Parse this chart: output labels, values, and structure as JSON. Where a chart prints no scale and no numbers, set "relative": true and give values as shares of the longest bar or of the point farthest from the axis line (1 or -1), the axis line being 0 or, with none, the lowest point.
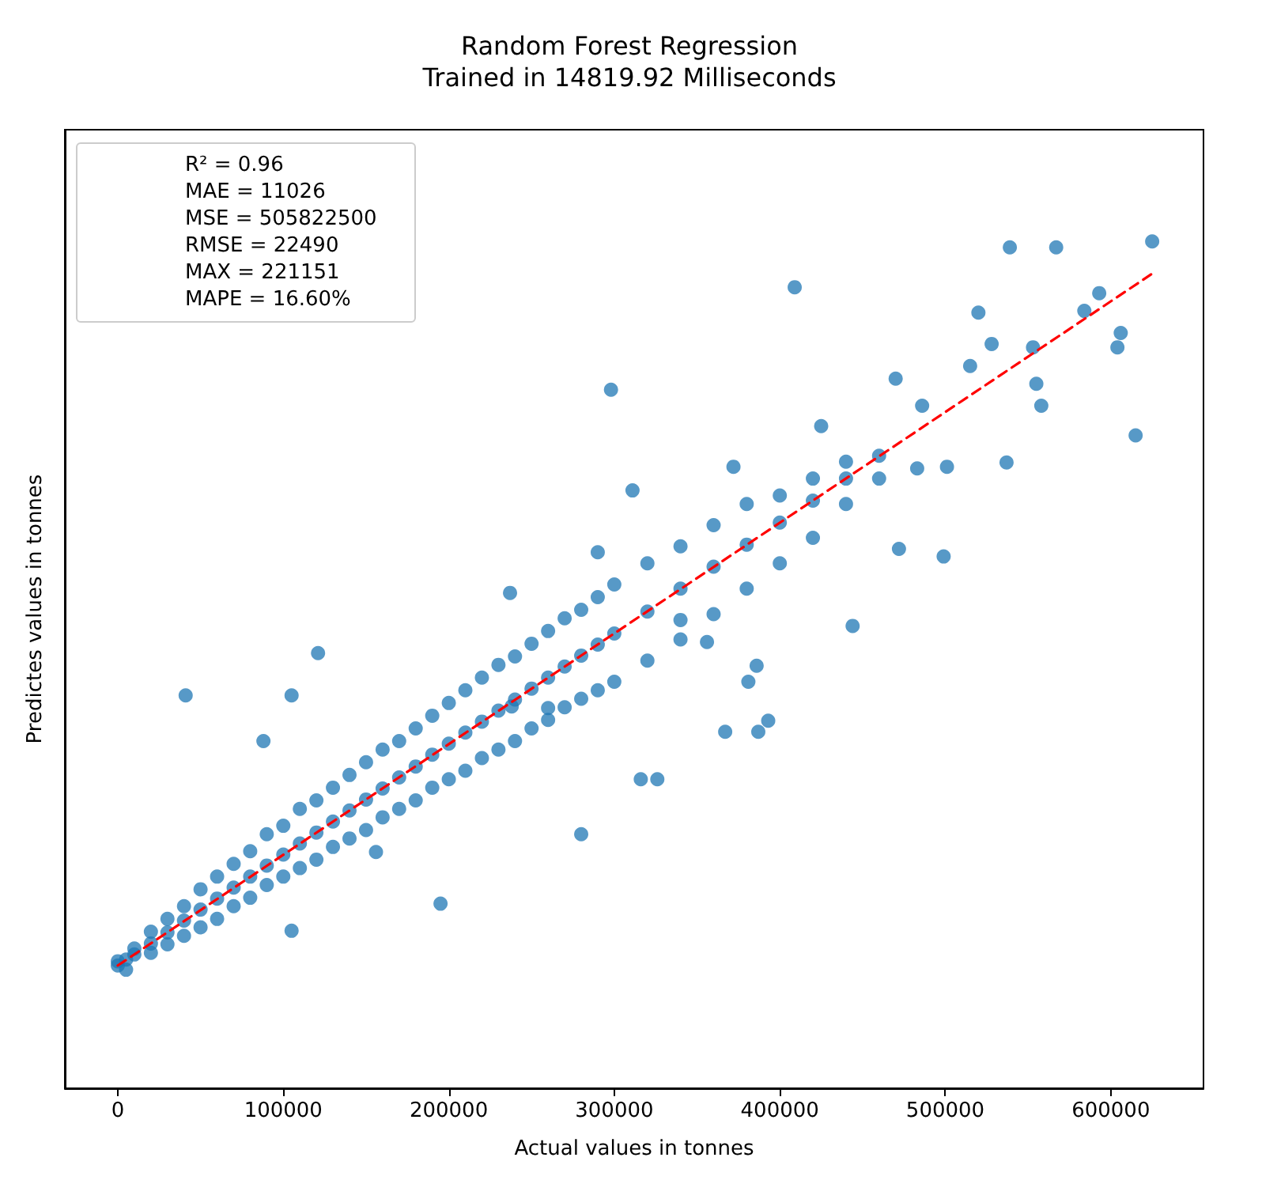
{
  "chart_data": {
    "type": "scatter",
    "title": "Random Forest Regression",
    "subtitle": "Trained in 14819.92 Milliseconds",
    "xlabel": "Actual values in tonnes",
    "ylabel": "Predictes values in tonnes",
    "relative": true,
    "xlim": [
      -32000,
      656000
    ],
    "xticks": [
      0,
      100000,
      200000,
      300000,
      400000,
      500000,
      600000
    ],
    "grid": false,
    "tick_labels": "x",
    "annotations": [
      "R² = 0.96",
      "MAE = 11026",
      "MSE = 505822500",
      "RMSE = 22490",
      "MAX = 221151",
      "MAPE = 16.60%"
    ],
    "series": [
      {
        "color": "#1f77b4",
        "marker": "circle",
        "x": [
          0,
          0,
          5000,
          5000,
          10000,
          10000,
          20000,
          20000,
          20000,
          30000,
          30000,
          30000,
          40000,
          40000,
          40000,
          50000,
          50000,
          50000,
          60000,
          60000,
          60000,
          70000,
          70000,
          70000,
          80000,
          80000,
          80000,
          90000,
          90000,
          90000,
          100000,
          100000,
          100000,
          110000,
          110000,
          110000,
          120000,
          120000,
          120000,
          130000,
          130000,
          130000,
          140000,
          140000,
          140000,
          150000,
          150000,
          150000,
          160000,
          160000,
          160000,
          170000,
          170000,
          170000,
          180000,
          180000,
          180000,
          190000,
          190000,
          190000,
          200000,
          200000,
          200000,
          210000,
          210000,
          210000,
          220000,
          220000,
          220000,
          230000,
          230000,
          230000,
          240000,
          240000,
          240000,
          250000,
          250000,
          250000,
          260000,
          260000,
          260000,
          270000,
          270000,
          270000,
          280000,
          280000,
          280000,
          290000,
          290000,
          290000,
          300000,
          300000,
          300000,
          320000,
          320000,
          320000,
          340000,
          340000,
          340000,
          360000,
          360000,
          360000,
          380000,
          380000,
          380000,
          400000,
          400000,
          400000,
          420000,
          420000,
          420000,
          440000,
          440000,
          440000,
          460000,
          460000,
          409000,
          539000,
          567000,
          625000,
          615000,
          298000,
          372000,
          425000,
          311000,
          483000,
          470000,
          486000,
          501000,
          537000,
          41000,
          121000,
          105000,
          88000,
          280000,
          195000,
          444000,
          387000,
          386000,
          393000,
          316000,
          326000,
          381000,
          367000,
          356000,
          340000,
          237000,
          290000,
          472000,
          499000,
          515000,
          520000,
          604000,
          528000,
          558000,
          555000,
          584000,
          593000,
          606000,
          553000,
          260000,
          156000,
          105000,
          238000
        ],
        "values": [
          0.145,
          0.15,
          0.152,
          0.14,
          0.158,
          0.165,
          0.171,
          0.16,
          0.185,
          0.184,
          0.17,
          0.2,
          0.198,
          0.18,
          0.215,
          0.211,
          0.19,
          0.235,
          0.224,
          0.2,
          0.25,
          0.237,
          0.215,
          0.265,
          0.25,
          0.225,
          0.28,
          0.263,
          0.24,
          0.3,
          0.276,
          0.25,
          0.31,
          0.289,
          0.26,
          0.33,
          0.302,
          0.27,
          0.34,
          0.315,
          0.285,
          0.355,
          0.328,
          0.295,
          0.37,
          0.341,
          0.305,
          0.385,
          0.354,
          0.32,
          0.4,
          0.367,
          0.33,
          0.41,
          0.38,
          0.34,
          0.425,
          0.394,
          0.355,
          0.44,
          0.407,
          0.365,
          0.455,
          0.42,
          0.375,
          0.47,
          0.433,
          0.39,
          0.485,
          0.446,
          0.4,
          0.5,
          0.459,
          0.41,
          0.51,
          0.472,
          0.425,
          0.525,
          0.485,
          0.435,
          0.54,
          0.498,
          0.45,
          0.555,
          0.511,
          0.46,
          0.565,
          0.524,
          0.47,
          0.58,
          0.537,
          0.48,
          0.595,
          0.563,
          0.505,
          0.62,
          0.59,
          0.53,
          0.64,
          0.616,
          0.56,
          0.665,
          0.642,
          0.59,
          0.69,
          0.668,
          0.62,
          0.7,
          0.694,
          0.65,
          0.72,
          0.72,
          0.69,
          0.74,
          0.747,
          0.72,
          0.946,
          0.993,
          0.993,
          1.0,
          0.771,
          0.825,
          0.734,
          0.782,
          0.706,
          0.732,
          0.838,
          0.806,
          0.734,
          0.739,
          0.464,
          0.514,
          0.464,
          0.41,
          0.3,
          0.218,
          0.546,
          0.421,
          0.499,
          0.434,
          0.365,
          0.365,
          0.48,
          0.421,
          0.527,
          0.553,
          0.585,
          0.633,
          0.637,
          0.628,
          0.853,
          0.916,
          0.875,
          0.879,
          0.806,
          0.832,
          0.918,
          0.939,
          0.892,
          0.875,
          0.449,
          0.279,
          0.186,
          0.451
        ]
      },
      {
        "type": "line",
        "color": "#ff0000",
        "line_style": "dashed",
        "marker": "none",
        "x": [
          0,
          625000
        ],
        "values": [
          0.145,
          0.962
        ]
      }
    ]
  }
}
